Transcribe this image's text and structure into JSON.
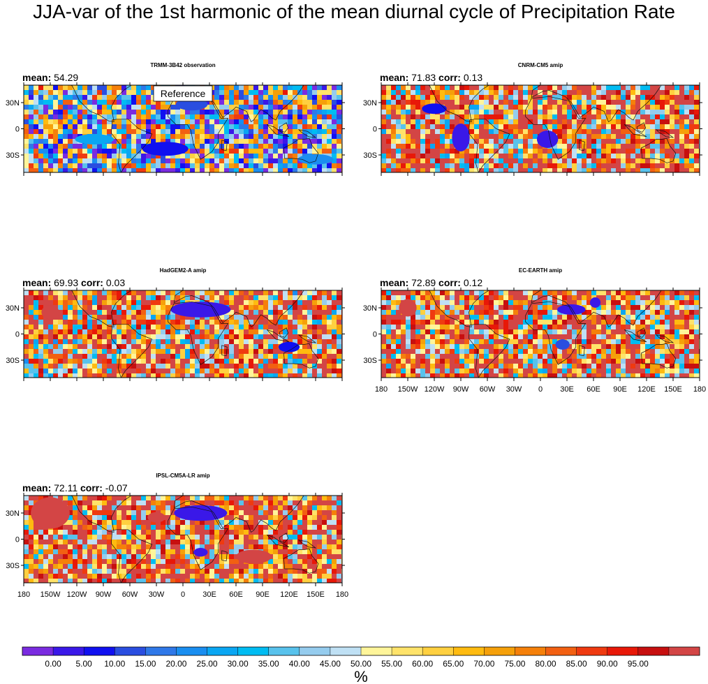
{
  "title": "JJA-var of the 1st harmonic of the mean diurnal cycle of Precipitation Rate",
  "panels": [
    {
      "name": "TRMM-3B42 observation",
      "mean_label": "mean:",
      "mean": "54.29",
      "corr_label": "",
      "corr": "",
      "reference_label": "Reference",
      "show_lon_labels": false
    },
    {
      "name": "CNRM-CM5 amip",
      "mean_label": "mean:",
      "mean": "71.83",
      "corr_label": "corr:",
      "corr": "0.13",
      "reference_label": "",
      "show_lon_labels": false
    },
    {
      "name": "HadGEM2-A amip",
      "mean_label": "mean:",
      "mean": "69.93",
      "corr_label": "corr:",
      "corr": "0.03",
      "reference_label": "",
      "show_lon_labels": false
    },
    {
      "name": "EC-EARTH amip",
      "mean_label": "mean:",
      "mean": "72.89",
      "corr_label": "corr:",
      "corr": "0.12",
      "reference_label": "",
      "show_lon_labels": true
    },
    {
      "name": "IPSL-CM5A-LR amip",
      "mean_label": "mean:",
      "mean": "72.11",
      "corr_label": "corr:",
      "corr": "-0.07",
      "reference_label": "",
      "show_lon_labels": true
    }
  ],
  "lat_ticks": [
    "30N",
    "0",
    "30S"
  ],
  "lon_ticks": [
    "180",
    "150W",
    "120W",
    "90W",
    "60W",
    "30W",
    "0",
    "30E",
    "60E",
    "90E",
    "120E",
    "150E",
    "180"
  ],
  "colorbar": {
    "labels": [
      "0.00",
      "5.00",
      "10.00",
      "15.00",
      "20.00",
      "25.00",
      "30.00",
      "35.00",
      "40.00",
      "45.00",
      "50.00",
      "55.00",
      "60.00",
      "65.00",
      "70.00",
      "75.00",
      "80.00",
      "85.00",
      "90.00",
      "95.00"
    ],
    "colors": [
      "#7a2be0",
      "#3a18e8",
      "#1010f0",
      "#2a4ee0",
      "#2f78e8",
      "#1a8ef0",
      "#0aa6f2",
      "#00bcf2",
      "#58c2ec",
      "#95ccee",
      "#bfe0f4",
      "#fff59a",
      "#ffe36a",
      "#ffd040",
      "#ffbb10",
      "#f5a00a",
      "#f5800a",
      "#f26012",
      "#ef3a10",
      "#e81808",
      "#c70f0f",
      "#d34545"
    ],
    "unit": "%"
  },
  "chart_data": {
    "type": "heatmap",
    "title": "JJA-var of the 1st harmonic of the mean diurnal cycle of Precipitation Rate",
    "unit": "%",
    "value_range": [
      0,
      100
    ],
    "contour_levels": [
      0,
      5,
      10,
      15,
      20,
      25,
      30,
      35,
      40,
      45,
      50,
      55,
      60,
      65,
      70,
      75,
      80,
      85,
      90,
      95
    ],
    "lon_range": [
      -180,
      180
    ],
    "lat_range": [
      -50,
      50
    ],
    "series": [
      {
        "name": "TRMM-3B42 observation",
        "mean": 54.29
      },
      {
        "name": "CNRM-CM5 amip",
        "mean": 71.83,
        "corr": 0.13
      },
      {
        "name": "HadGEM2-A amip",
        "mean": 69.93,
        "corr": 0.03
      },
      {
        "name": "EC-EARTH amip",
        "mean": 72.89,
        "corr": 0.12
      },
      {
        "name": "IPSL-CM5A-LR amip",
        "mean": 72.11,
        "corr": -0.07
      }
    ]
  }
}
